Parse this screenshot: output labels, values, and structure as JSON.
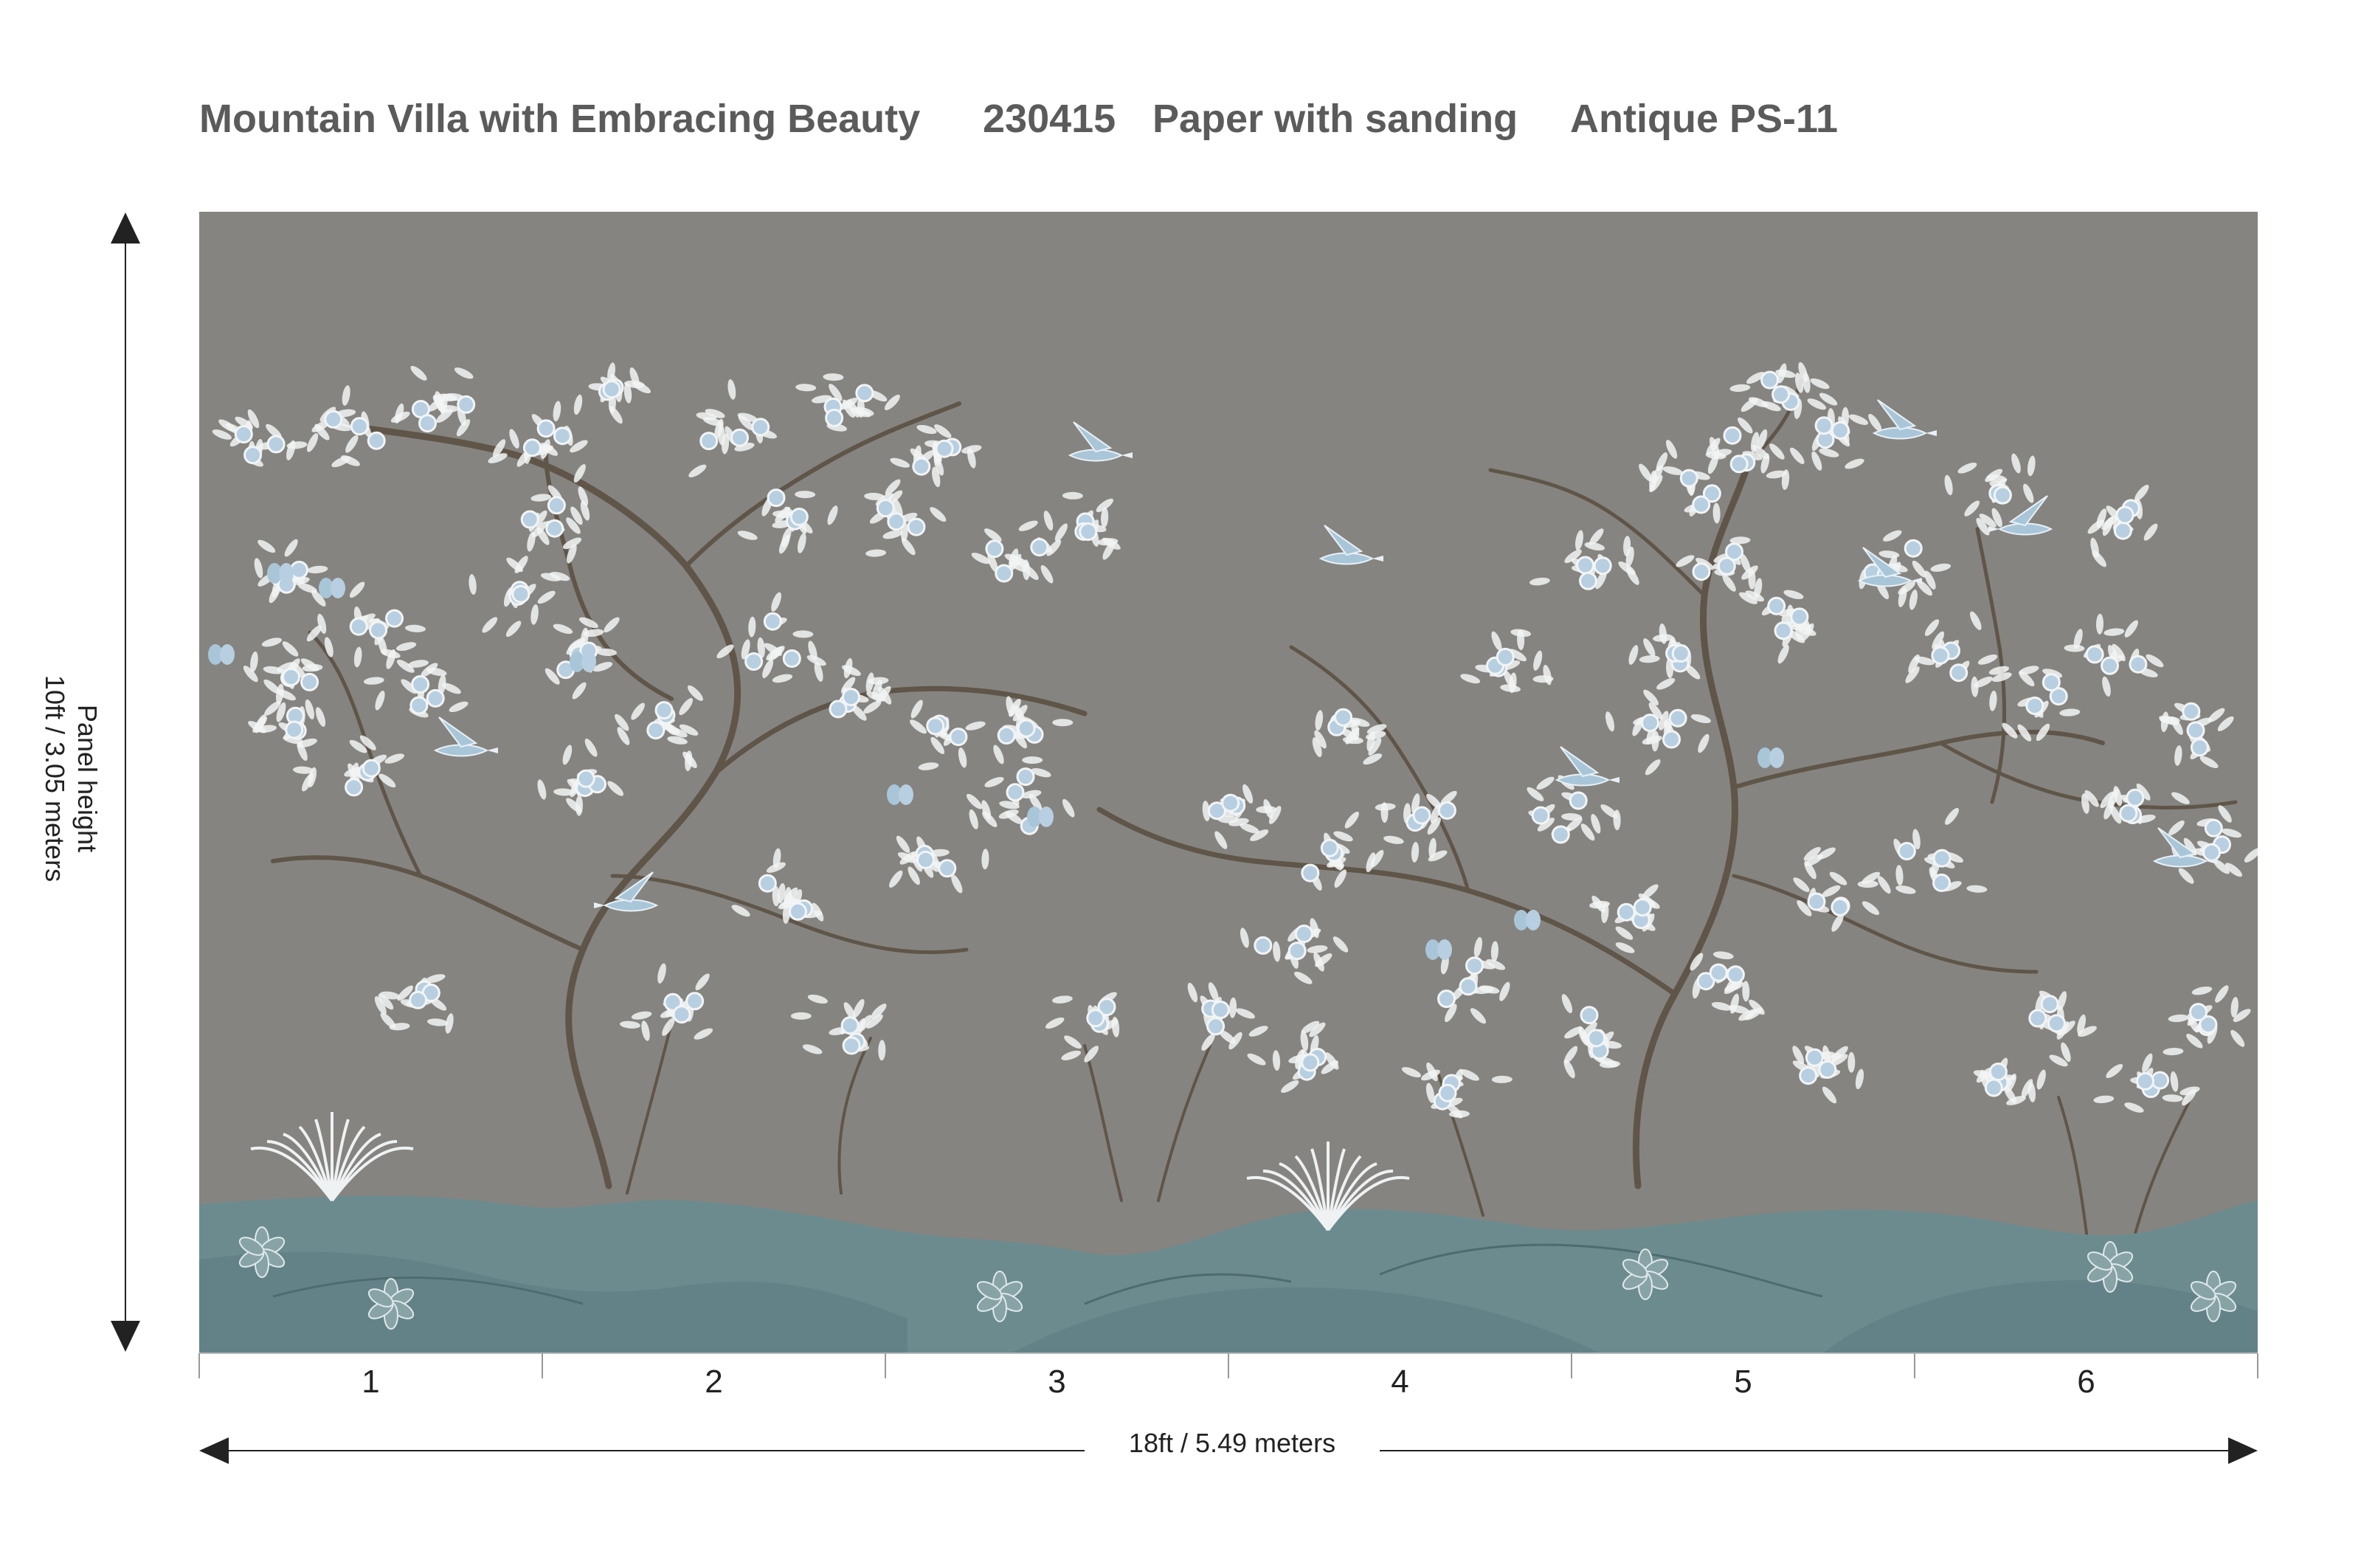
{
  "header": {
    "pattern_name": "Mountain Villa with Embracing Beauty",
    "pattern_code": "230415",
    "material": "Paper with sanding",
    "colorway": "Antique PS-11"
  },
  "panels": [
    "1",
    "2",
    "3",
    "4",
    "5",
    "6"
  ],
  "dimensions": {
    "width_label": "18ft / 5.49 meters",
    "height_title": "Panel height",
    "height_value": "10ft / 3.05 meters"
  },
  "colors": {
    "background": "#868480",
    "hills": "#6b8b8f",
    "hills_light": "#88a3a6",
    "branch": "#5f5548",
    "blossom": "#f2f4f5",
    "blossom_blue": "#b7cfe0",
    "bird": "#a9c6d9",
    "title_text": "#5b5b5b"
  }
}
